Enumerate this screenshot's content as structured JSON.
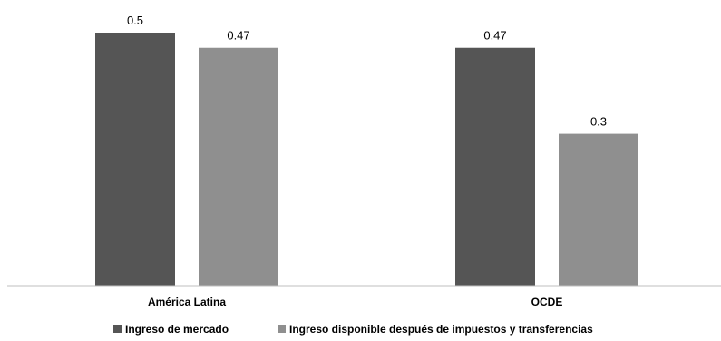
{
  "chart_data": {
    "type": "bar",
    "categories": [
      "América Latina",
      "OCDE"
    ],
    "series": [
      {
        "name": "Ingreso de mercado",
        "values": [
          0.5,
          0.47
        ],
        "color": "#555555"
      },
      {
        "name": "Ingreso disponible después de impuestos y transferencias",
        "values": [
          0.47,
          0.3
        ],
        "color": "#8f8f8f"
      }
    ],
    "value_labels": [
      [
        "0.5",
        "0.47"
      ],
      [
        "0.47",
        "0.3"
      ]
    ],
    "ylim": [
      0,
      0.5
    ],
    "grid": false,
    "legend_position": "bottom",
    "baseline_color": "#bfbfbf"
  }
}
